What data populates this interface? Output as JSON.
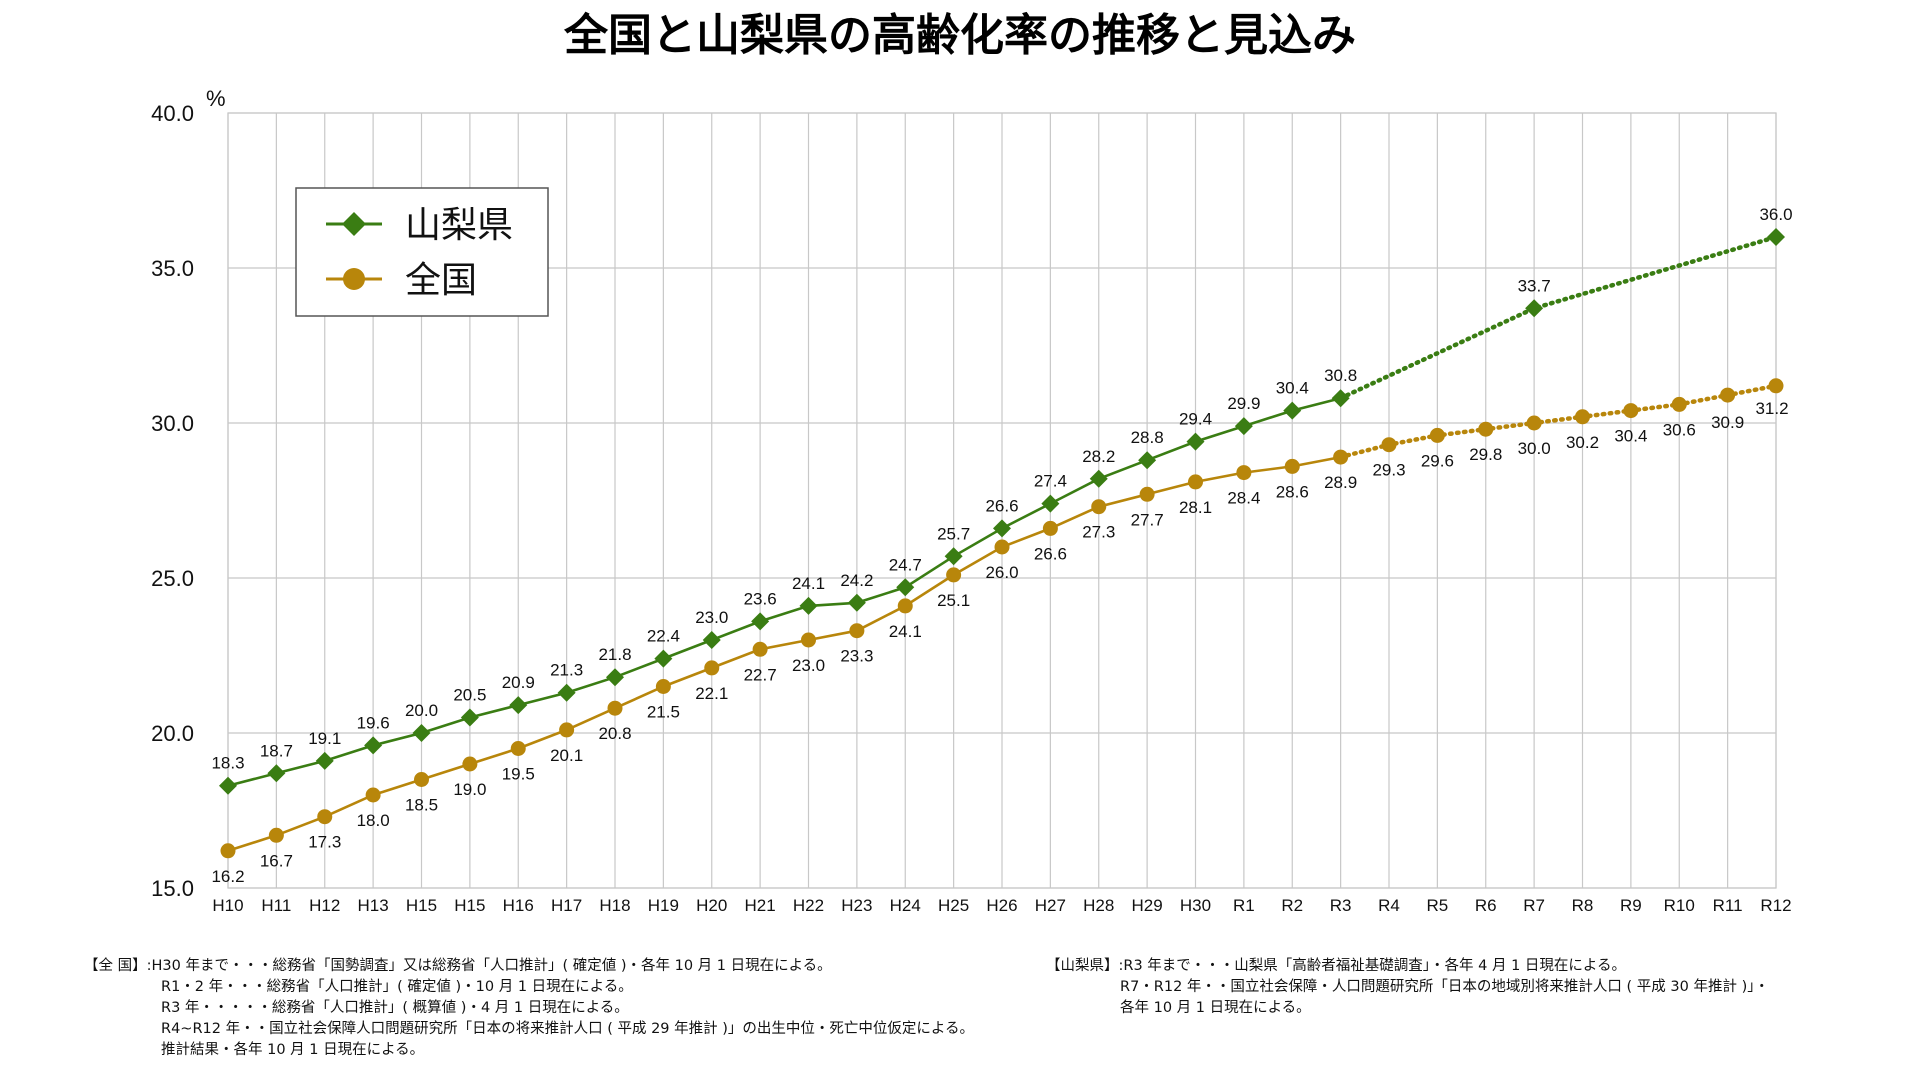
{
  "chart_data": {
    "type": "line",
    "title": "全国と山梨県の高齢化率の推移と見込み",
    "ylabel": "%",
    "ylim": [
      15.0,
      40.0
    ],
    "yticks": [
      "15.0",
      "20.0",
      "25.0",
      "30.0",
      "35.0",
      "40.0"
    ],
    "grid": true,
    "legend_position": "top-left",
    "categories": [
      "H10",
      "H11",
      "H12",
      "H13",
      "H15",
      "H15",
      "H16",
      "H17",
      "H18",
      "H19",
      "H20",
      "H21",
      "H22",
      "H23",
      "H24",
      "H25",
      "H26",
      "H27",
      "H28",
      "H29",
      "H30",
      "R1",
      "R2",
      "R3",
      "R4",
      "R5",
      "R6",
      "R7",
      "R8",
      "R9",
      "R10",
      "R11",
      "R12"
    ],
    "series": [
      {
        "name": "山梨県",
        "color": "#3a7d13",
        "marker": "diamond",
        "points": [
          {
            "i": 0,
            "y": 18.3
          },
          {
            "i": 1,
            "y": 18.7
          },
          {
            "i": 2,
            "y": 19.1
          },
          {
            "i": 3,
            "y": 19.6
          },
          {
            "i": 4,
            "y": 20.0
          },
          {
            "i": 5,
            "y": 20.5
          },
          {
            "i": 6,
            "y": 20.9
          },
          {
            "i": 7,
            "y": 21.3
          },
          {
            "i": 8,
            "y": 21.8
          },
          {
            "i": 9,
            "y": 22.4
          },
          {
            "i": 10,
            "y": 23.0
          },
          {
            "i": 11,
            "y": 23.6
          },
          {
            "i": 12,
            "y": 24.1
          },
          {
            "i": 13,
            "y": 24.2
          },
          {
            "i": 14,
            "y": 24.7
          },
          {
            "i": 15,
            "y": 25.7
          },
          {
            "i": 16,
            "y": 26.6
          },
          {
            "i": 17,
            "y": 27.4
          },
          {
            "i": 18,
            "y": 28.2
          },
          {
            "i": 19,
            "y": 28.8
          },
          {
            "i": 20,
            "y": 29.4
          },
          {
            "i": 21,
            "y": 29.9
          },
          {
            "i": 22,
            "y": 30.4
          },
          {
            "i": 23,
            "y": 30.8
          },
          {
            "i": 27,
            "y": 33.7
          },
          {
            "i": 32,
            "y": 36.0
          }
        ],
        "projection_from_index": 23
      },
      {
        "name": "全国",
        "color": "#b8860b",
        "marker": "circle",
        "points": [
          {
            "i": 0,
            "y": 16.2
          },
          {
            "i": 1,
            "y": 16.7
          },
          {
            "i": 2,
            "y": 17.3
          },
          {
            "i": 3,
            "y": 18.0
          },
          {
            "i": 4,
            "y": 18.5
          },
          {
            "i": 5,
            "y": 19.0
          },
          {
            "i": 6,
            "y": 19.5
          },
          {
            "i": 7,
            "y": 20.1
          },
          {
            "i": 8,
            "y": 20.8
          },
          {
            "i": 9,
            "y": 21.5
          },
          {
            "i": 10,
            "y": 22.1
          },
          {
            "i": 11,
            "y": 22.7
          },
          {
            "i": 12,
            "y": 23.0
          },
          {
            "i": 13,
            "y": 23.3
          },
          {
            "i": 14,
            "y": 24.1
          },
          {
            "i": 15,
            "y": 25.1
          },
          {
            "i": 16,
            "y": 26.0
          },
          {
            "i": 17,
            "y": 26.6
          },
          {
            "i": 18,
            "y": 27.3
          },
          {
            "i": 19,
            "y": 27.7
          },
          {
            "i": 20,
            "y": 28.1
          },
          {
            "i": 21,
            "y": 28.4
          },
          {
            "i": 22,
            "y": 28.6
          },
          {
            "i": 23,
            "y": 28.9
          },
          {
            "i": 24,
            "y": 29.3
          },
          {
            "i": 25,
            "y": 29.6
          },
          {
            "i": 26,
            "y": 29.8
          },
          {
            "i": 27,
            "y": 30.0
          },
          {
            "i": 28,
            "y": 30.2
          },
          {
            "i": 29,
            "y": 30.4
          },
          {
            "i": 30,
            "y": 30.6
          },
          {
            "i": 31,
            "y": 30.9
          },
          {
            "i": 32,
            "y": 31.2
          }
        ],
        "projection_from_index": 23
      }
    ]
  },
  "notes": {
    "national": [
      "【全 国】:H30 年まで・・・総務省「国勢調査」又は総務省「人口推計」( 確定値 )・各年 10 月 1 日現在による。",
      "R1・2 年・・・総務省「人口推計」( 確定値 )・10 月 1 日現在による。",
      "R3 年・・・・・総務省「人口推計」( 概算値 )・4 月 1 日現在による。",
      "R4~R12 年・・国立社会保障人口問題研究所「日本の将来推計人口 ( 平成 29 年推計 )」の出生中位・死亡中位仮定による。",
      "推計結果・各年 10 月 1 日現在による。"
    ],
    "yamanashi": [
      "【山梨県】:R3 年まで・・・山梨県「高齢者福祉基礎調査」・各年 4 月 1 日現在による。",
      "R7・R12 年・・国立社会保障・人口問題研究所「日本の地域別将来推計人口 ( 平成 30 年推計 )」・",
      "各年 10 月 1 日現在による。"
    ]
  }
}
